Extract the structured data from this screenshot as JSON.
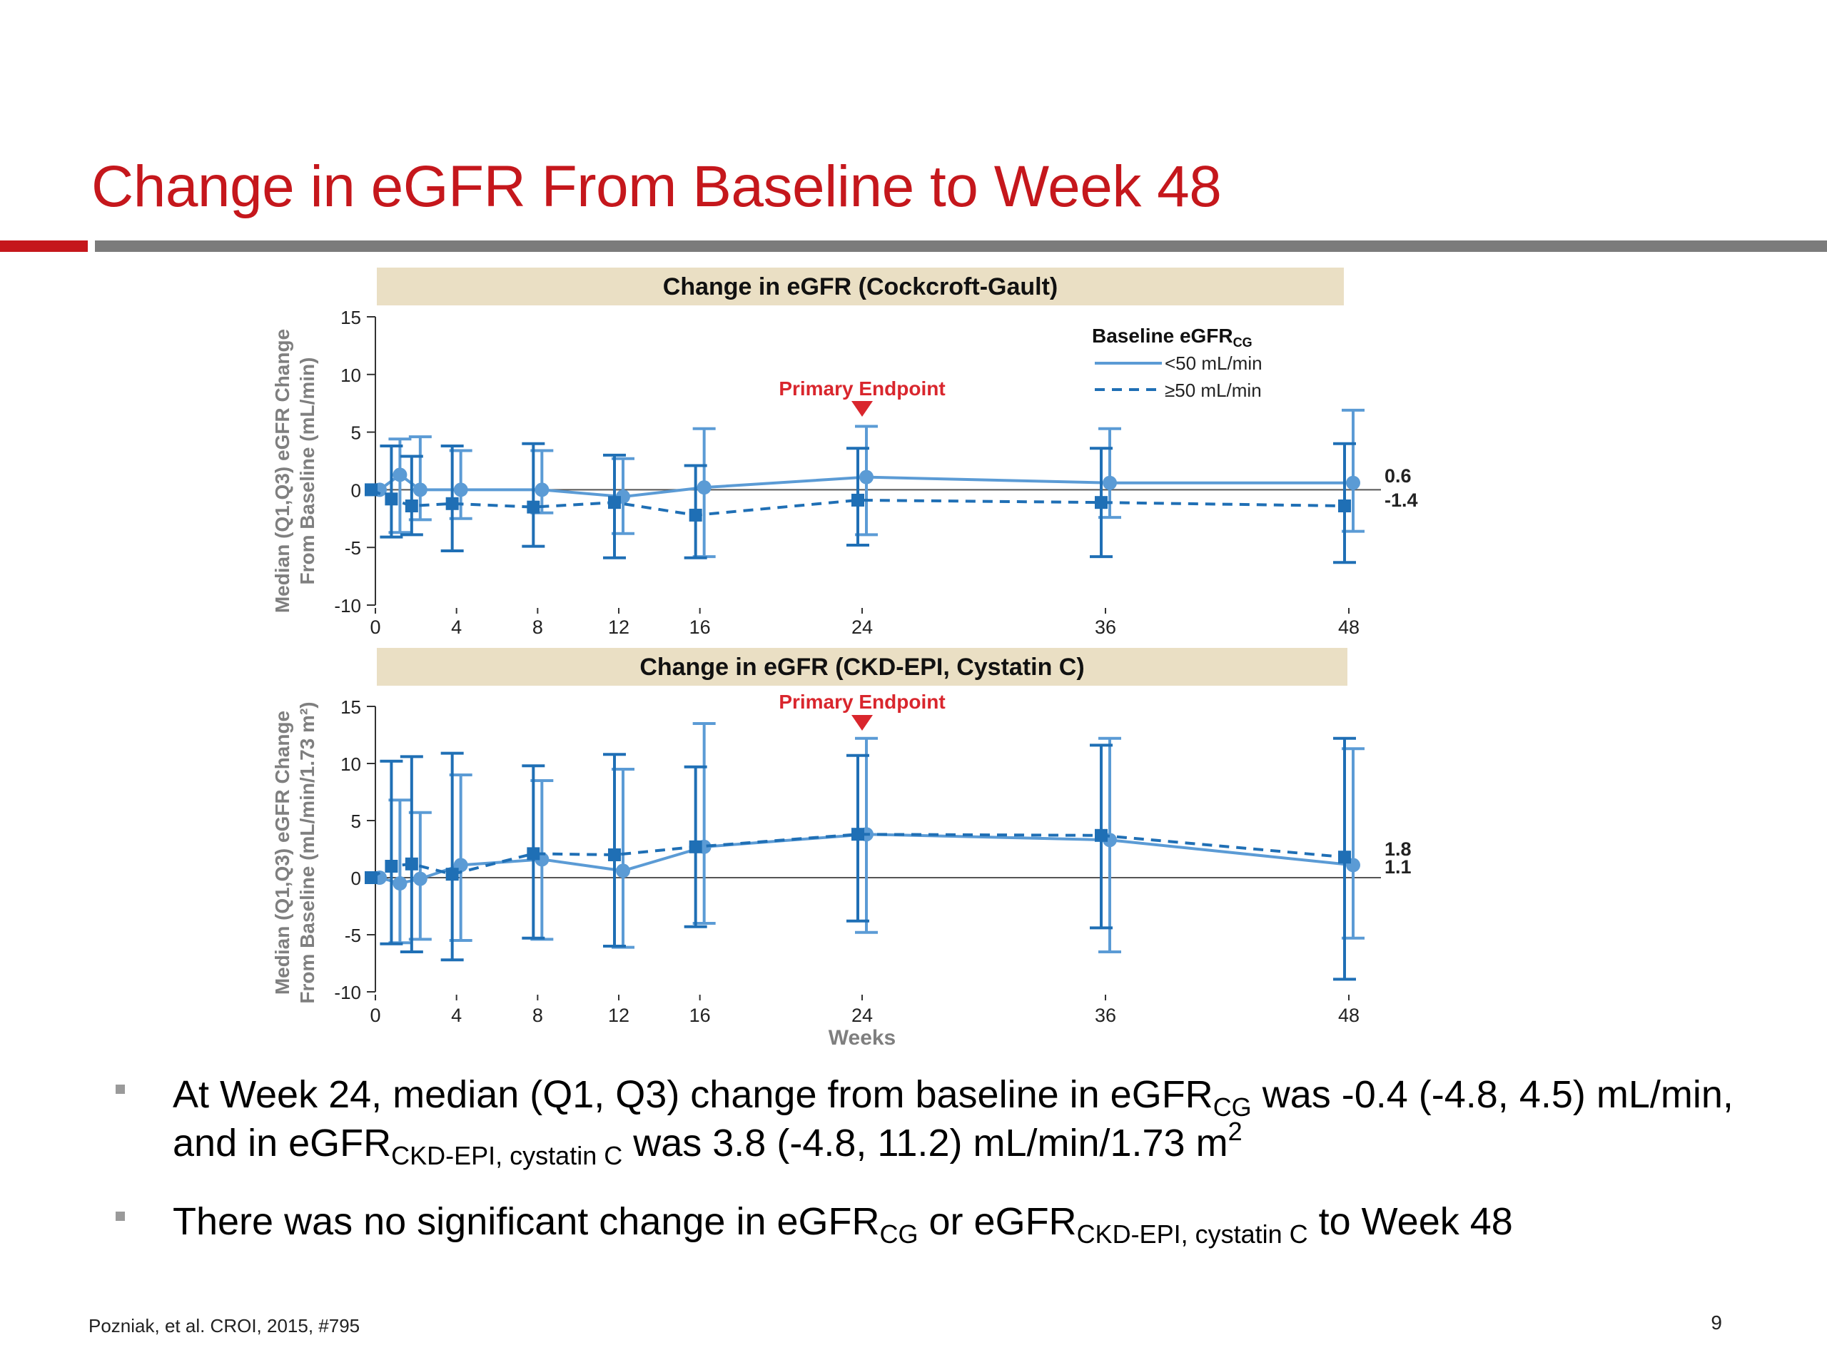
{
  "slide": {
    "title": "Change in eGFR From Baseline to Week 48",
    "citation": "Pozniak, et al. CROI, 2015, #795",
    "page_number": "9",
    "bullets": [
      {
        "p1": "At Week 24, median (Q1, Q3) change from baseline in eGFR",
        "sub1": "CG",
        "p2": " was -0.4 (-4.8, 4.5) mL/min, and in eGFR",
        "sub2": "CKD-EPI, cystatin C",
        "p3": " was 3.8 (-4.8, 11.2) mL/min/1.73 m",
        "sup3": "2"
      },
      {
        "p1": "There was no significant change in eGFR",
        "sub1": "CG",
        "p2": " or eGFR",
        "sub2": "CKD-EPI, cystatin C",
        "p3": " to Week 48"
      }
    ],
    "colors": {
      "title_red": "#c5171c",
      "rule_gray": "#7b7b7b",
      "header_fill": "#eadfc4",
      "series_light": "#5b9bd5",
      "series_dark": "#1f6fb5",
      "endpoint": "#d9262d",
      "bullet_marker": "#9a9a9a"
    }
  },
  "chart_data": [
    {
      "type": "line",
      "title": "Change in eGFR (Cockcroft-Gault)",
      "ylabel": [
        "Median (Q1,Q3) eGFR Change",
        "From Baseline (mL/min)"
      ],
      "xlabel": "",
      "x_ticks": [
        0,
        4,
        8,
        12,
        16,
        24,
        36,
        48
      ],
      "y_ticks": [
        15,
        10,
        5,
        0,
        -5,
        -10
      ],
      "ylim": [
        -10,
        15
      ],
      "annotation": {
        "text": "Primary Endpoint",
        "x": 24
      },
      "legend": {
        "title": "Baseline eGFR",
        "title_sub": "CG",
        "position": "top-right",
        "entries": [
          "<50 mL/min",
          "≥50 mL/min"
        ]
      },
      "end_labels": [
        "0.6",
        "-1.4"
      ],
      "series": [
        {
          "name": "<50 mL/min",
          "style": "solid",
          "marker": "circle",
          "x": [
            0,
            1,
            2,
            4,
            8,
            12,
            16,
            24,
            36,
            48
          ],
          "y": [
            0,
            1.3,
            0,
            0,
            0,
            -0.6,
            0.2,
            1.1,
            0.6,
            0.6
          ],
          "q1": [
            0,
            -3.7,
            -2.6,
            -2.5,
            -2.0,
            -3.8,
            -5.8,
            -3.9,
            -2.4,
            -3.6
          ],
          "q3": [
            0,
            4.4,
            4.6,
            3.4,
            3.4,
            2.7,
            5.3,
            5.5,
            5.3,
            6.9
          ]
        },
        {
          "name": "≥50 mL/min",
          "style": "dashed",
          "marker": "square",
          "x": [
            0,
            1,
            2,
            4,
            8,
            12,
            16,
            24,
            36,
            48
          ],
          "y": [
            0,
            -0.8,
            -1.4,
            -1.2,
            -1.5,
            -1.1,
            -2.2,
            -0.9,
            -1.1,
            -1.4
          ],
          "q1": [
            0,
            -4.1,
            -3.9,
            -5.3,
            -4.9,
            -5.9,
            -5.9,
            -4.8,
            -5.8,
            -6.3
          ],
          "q3": [
            0,
            3.8,
            2.9,
            3.8,
            4.0,
            3.0,
            2.1,
            3.6,
            3.6,
            4.0
          ]
        }
      ]
    },
    {
      "type": "line",
      "title": "Change in eGFR (CKD-EPI, Cystatin C)",
      "ylabel": [
        "Median (Q1,Q3) eGFR Change",
        "From Baseline (mL/min/1.73 m²)"
      ],
      "xlabel": "Weeks",
      "x_ticks": [
        0,
        4,
        8,
        12,
        16,
        24,
        36,
        48
      ],
      "y_ticks": [
        15,
        10,
        5,
        0,
        -5,
        -10
      ],
      "ylim": [
        -10,
        15
      ],
      "annotation": {
        "text": "Primary Endpoint",
        "x": 24
      },
      "end_labels": [
        "1.8",
        "1.1"
      ],
      "series": [
        {
          "name": "<50 mL/min",
          "style": "solid",
          "marker": "circle",
          "x": [
            0,
            1,
            2,
            4,
            8,
            12,
            16,
            24,
            36,
            48
          ],
          "y": [
            0,
            -0.5,
            -0.1,
            1.1,
            1.6,
            0.6,
            2.7,
            3.8,
            3.3,
            1.1
          ],
          "q1": [
            0,
            -5.7,
            -5.4,
            -5.5,
            -5.4,
            -6.1,
            -4.0,
            -4.8,
            -6.5,
            -5.3
          ],
          "q3": [
            0,
            6.8,
            5.7,
            9.0,
            8.5,
            9.5,
            13.5,
            12.2,
            12.2,
            11.3
          ]
        },
        {
          "name": "≥50 mL/min",
          "style": "dashed",
          "marker": "square",
          "x": [
            0,
            1,
            2,
            4,
            8,
            12,
            16,
            24,
            36,
            48
          ],
          "y": [
            0,
            1.0,
            1.2,
            0.3,
            2.1,
            2.0,
            2.7,
            3.8,
            3.7,
            1.8
          ],
          "q1": [
            0,
            -5.8,
            -6.5,
            -7.2,
            -5.3,
            -6.0,
            -4.3,
            -3.8,
            -4.4,
            -8.9
          ],
          "q3": [
            0,
            10.2,
            10.6,
            10.9,
            9.8,
            10.8,
            9.7,
            10.7,
            11.6,
            12.2
          ]
        }
      ]
    }
  ]
}
